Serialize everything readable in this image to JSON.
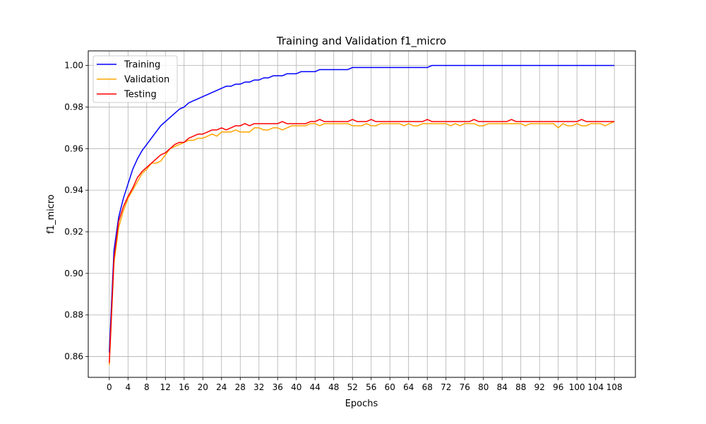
{
  "chart_data": {
    "type": "line",
    "title": "Training and Validation f1_micro",
    "xlabel": "Epochs",
    "ylabel": "f1_micro",
    "xlim": [
      -4.5,
      112.5
    ],
    "ylim": [
      0.85,
      1.007
    ],
    "xticks": [
      0,
      4,
      8,
      12,
      16,
      20,
      24,
      28,
      32,
      36,
      40,
      44,
      48,
      52,
      56,
      60,
      64,
      68,
      72,
      76,
      80,
      84,
      88,
      92,
      96,
      100,
      104,
      108
    ],
    "yticks": [
      0.86,
      0.88,
      0.9,
      0.92,
      0.94,
      0.96,
      0.98,
      1.0
    ],
    "ytick_labels": [
      "0.86",
      "0.88",
      "0.90",
      "0.92",
      "0.94",
      "0.96",
      "0.98",
      "1.00"
    ],
    "grid": true,
    "legend_position": "top-left",
    "colors": {
      "training": "#0000ff",
      "validation": "#ffa500",
      "testing": "#ff0000",
      "grid": "#b0b0b0"
    },
    "series": [
      {
        "name": "Training",
        "color": "#0000ff",
        "values": [
          0.862,
          0.911,
          0.927,
          0.936,
          0.943,
          0.95,
          0.955,
          0.959,
          0.962,
          0.965,
          0.968,
          0.971,
          0.973,
          0.975,
          0.977,
          0.979,
          0.98,
          0.982,
          0.983,
          0.984,
          0.985,
          0.986,
          0.987,
          0.988,
          0.989,
          0.99,
          0.99,
          0.991,
          0.991,
          0.992,
          0.992,
          0.993,
          0.993,
          0.994,
          0.994,
          0.995,
          0.995,
          0.995,
          0.996,
          0.996,
          0.996,
          0.997,
          0.997,
          0.997,
          0.997,
          0.998,
          0.998,
          0.998,
          0.998,
          0.998,
          0.998,
          0.998,
          0.999,
          0.999,
          0.999,
          0.999,
          0.999,
          0.999,
          0.999,
          0.999,
          0.999,
          0.999,
          0.999,
          0.999,
          0.999,
          0.999,
          0.999,
          0.999,
          0.999,
          1.0,
          1.0,
          1.0,
          1.0,
          1.0,
          1.0,
          1.0,
          1.0,
          1.0,
          1.0,
          1.0,
          1.0,
          1.0,
          1.0,
          1.0,
          1.0,
          1.0,
          1.0,
          1.0,
          1.0,
          1.0,
          1.0,
          1.0,
          1.0,
          1.0,
          1.0,
          1.0,
          1.0,
          1.0,
          1.0,
          1.0,
          1.0,
          1.0,
          1.0,
          1.0,
          1.0,
          1.0,
          1.0,
          1.0,
          1.0
        ]
      },
      {
        "name": "Validation",
        "color": "#ffa500",
        "values": [
          0.856,
          0.905,
          0.922,
          0.93,
          0.936,
          0.94,
          0.944,
          0.948,
          0.95,
          0.953,
          0.953,
          0.954,
          0.957,
          0.96,
          0.961,
          0.962,
          0.963,
          0.964,
          0.964,
          0.965,
          0.965,
          0.966,
          0.967,
          0.966,
          0.968,
          0.968,
          0.968,
          0.969,
          0.968,
          0.968,
          0.968,
          0.97,
          0.97,
          0.969,
          0.969,
          0.97,
          0.97,
          0.969,
          0.97,
          0.971,
          0.971,
          0.971,
          0.971,
          0.972,
          0.972,
          0.971,
          0.972,
          0.972,
          0.972,
          0.972,
          0.972,
          0.972,
          0.971,
          0.971,
          0.971,
          0.972,
          0.971,
          0.971,
          0.972,
          0.972,
          0.972,
          0.972,
          0.972,
          0.971,
          0.972,
          0.971,
          0.971,
          0.972,
          0.972,
          0.972,
          0.972,
          0.972,
          0.972,
          0.971,
          0.972,
          0.971,
          0.972,
          0.972,
          0.972,
          0.971,
          0.971,
          0.972,
          0.972,
          0.972,
          0.972,
          0.972,
          0.972,
          0.972,
          0.972,
          0.971,
          0.972,
          0.972,
          0.972,
          0.972,
          0.972,
          0.972,
          0.97,
          0.972,
          0.971,
          0.971,
          0.972,
          0.971,
          0.971,
          0.972,
          0.972,
          0.972,
          0.971,
          0.972,
          0.973
        ]
      },
      {
        "name": "Testing",
        "color": "#ff0000",
        "values": [
          0.857,
          0.907,
          0.925,
          0.932,
          0.937,
          0.941,
          0.946,
          0.949,
          0.951,
          0.953,
          0.955,
          0.957,
          0.958,
          0.96,
          0.962,
          0.963,
          0.963,
          0.965,
          0.966,
          0.967,
          0.967,
          0.968,
          0.969,
          0.969,
          0.97,
          0.969,
          0.97,
          0.971,
          0.971,
          0.972,
          0.971,
          0.972,
          0.972,
          0.972,
          0.972,
          0.972,
          0.972,
          0.973,
          0.972,
          0.972,
          0.972,
          0.972,
          0.972,
          0.973,
          0.973,
          0.974,
          0.973,
          0.973,
          0.973,
          0.973,
          0.973,
          0.973,
          0.974,
          0.973,
          0.973,
          0.973,
          0.974,
          0.973,
          0.973,
          0.973,
          0.973,
          0.973,
          0.973,
          0.973,
          0.973,
          0.973,
          0.973,
          0.973,
          0.974,
          0.973,
          0.973,
          0.973,
          0.973,
          0.973,
          0.973,
          0.973,
          0.973,
          0.973,
          0.974,
          0.973,
          0.973,
          0.973,
          0.973,
          0.973,
          0.973,
          0.973,
          0.974,
          0.973,
          0.973,
          0.973,
          0.973,
          0.973,
          0.973,
          0.973,
          0.973,
          0.973,
          0.973,
          0.973,
          0.973,
          0.973,
          0.973,
          0.974,
          0.973,
          0.973,
          0.973,
          0.973,
          0.973,
          0.973,
          0.973
        ]
      }
    ]
  }
}
